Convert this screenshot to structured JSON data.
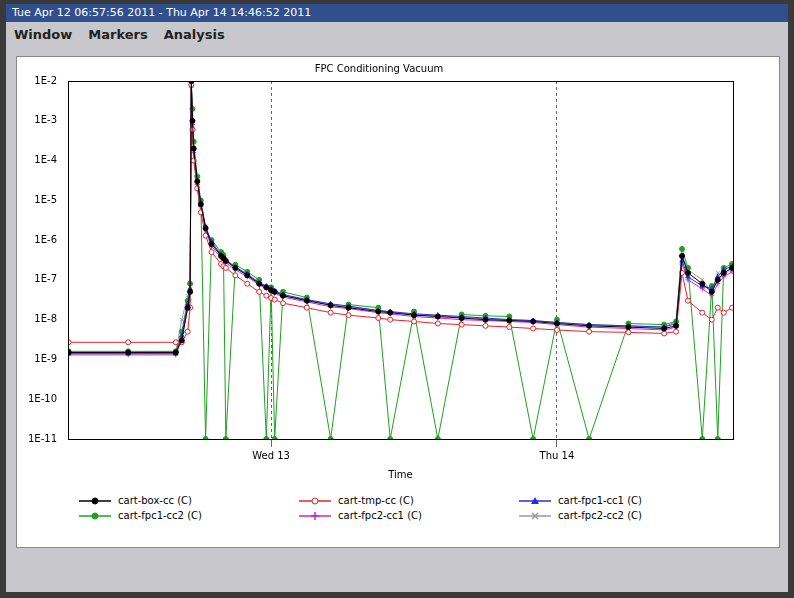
{
  "window_title": "Tue Apr 12 06:57:56 2011 - Thu Apr 14 14:46:52 2011",
  "menu": [
    "Window",
    "Markers",
    "Analysis"
  ],
  "chart_data": {
    "type": "line",
    "title": "FPC Conditioning Vacuum",
    "x_label": "Time",
    "x": [
      -17,
      -12,
      -8,
      -7.5,
      -7,
      -6.8,
      -6.7,
      -6.6,
      -6.5,
      -6.2,
      -5.9,
      -5.5,
      -5,
      -4.2,
      -4,
      -3.8,
      -3,
      -2,
      -1,
      -0.4,
      0,
      0.3,
      1,
      3,
      5,
      6.5,
      9,
      10,
      12,
      14,
      16,
      18,
      20,
      22,
      24,
      26.7,
      30,
      33,
      34,
      34.5,
      35,
      36.2,
      37,
      37.5,
      38,
      38.7
    ],
    "xlim": [
      -17.05,
      38.78
    ],
    "xticks": [
      {
        "value": 0,
        "label": "Wed 13"
      },
      {
        "value": 24,
        "label": "Thu 14"
      }
    ],
    "ylim": [
      1e-11,
      0.01
    ],
    "yticks": [
      {
        "value": 1e-11,
        "label": "1E-11"
      },
      {
        "value": 1e-10,
        "label": "1E-10"
      },
      {
        "value": 1e-09,
        "label": "1E-9"
      },
      {
        "value": 1e-08,
        "label": "1E-8"
      },
      {
        "value": 1e-07,
        "label": "1E-7"
      },
      {
        "value": 1e-06,
        "label": "1E-6"
      },
      {
        "value": 1e-05,
        "label": "1E-5"
      },
      {
        "value": 0.0001,
        "label": "1E-4"
      },
      {
        "value": 0.001,
        "label": "1E-3"
      },
      {
        "value": 0.01,
        "label": "1E-2"
      }
    ],
    "log": "y",
    "grid": "x",
    "legend": "bottom",
    "series": [
      {
        "name": "cart-box-cc (C)",
        "color": "#000000",
        "marker": "circle",
        "values": [
          1.5e-09,
          1.5e-09,
          1.5e-09,
          3e-09,
          2e-08,
          5e-08,
          0.01,
          0.001,
          0.0002,
          3e-05,
          8e-06,
          2e-06,
          8e-07,
          4e-07,
          3.5e-07,
          3e-07,
          2e-07,
          1.3e-07,
          8e-08,
          6.5e-08,
          5.5e-08,
          5e-08,
          4e-08,
          3e-08,
          2.3e-08,
          2e-08,
          1.6e-08,
          1.5e-08,
          1.3e-08,
          1.2e-08,
          1.1e-08,
          1e-08,
          9.5e-09,
          9e-09,
          8e-09,
          7e-09,
          6.5e-09,
          6e-09,
          7e-09,
          4e-07,
          1.5e-07,
          8e-08,
          5e-08,
          1e-07,
          1.5e-07,
          2e-07
        ]
      },
      {
        "name": "cart-tmp-cc (C)",
        "color": "#e8202a",
        "marker": "open_circle",
        "values": [
          2.7e-09,
          2.7e-09,
          2.7e-09,
          2.7e-09,
          5e-09,
          2e-08,
          0.008,
          0.0006,
          0.0001,
          2e-05,
          5e-06,
          1.3e-06,
          5e-07,
          2.5e-07,
          2.2e-07,
          2e-07,
          1.3e-07,
          8e-08,
          5e-08,
          4e-08,
          3.5e-08,
          3.2e-08,
          2.6e-08,
          2e-08,
          1.5e-08,
          1.3e-08,
          1.1e-08,
          1e-08,
          9e-09,
          8e-09,
          7.5e-09,
          7e-09,
          6.5e-09,
          6e-09,
          5.5e-09,
          5e-09,
          4.8e-09,
          4.5e-09,
          5e-09,
          1.5e-07,
          3e-08,
          1.5e-08,
          1e-08,
          2e-08,
          1.5e-08,
          2e-08
        ]
      },
      {
        "name": "cart-fpc1-cc1 (C)",
        "color": "#2030e0",
        "marker": "triangle",
        "values": [
          1.4e-09,
          1.4e-09,
          1.4e-09,
          4e-09,
          2.5e-08,
          6e-08,
          0.009,
          0.001,
          0.0002,
          3e-05,
          9e-06,
          2.2e-06,
          9e-07,
          4.3e-07,
          3.8e-07,
          3.2e-07,
          2.1e-07,
          1.4e-07,
          8.5e-08,
          7e-08,
          6e-08,
          5.4e-08,
          4.3e-08,
          3.2e-08,
          2.5e-08,
          2.2e-08,
          1.7e-08,
          1.6e-08,
          1.4e-08,
          1.3e-08,
          1.2e-08,
          1.1e-08,
          1e-08,
          9.5e-09,
          8.5e-09,
          7.5e-09,
          7e-09,
          6.5e-09,
          8e-09,
          3e-07,
          1.2e-07,
          7e-08,
          6e-08,
          1.2e-07,
          1.8e-07,
          2.2e-07
        ]
      },
      {
        "name": "cart-fpc1-cc2 (C)",
        "color": "#20a020",
        "marker": "circle",
        "values": [
          1.6e-09,
          1.6e-09,
          1.6e-09,
          5e-09,
          3e-08,
          8e-08,
          0.01,
          0.002,
          0.0003,
          4e-05,
          1e-05,
          1e-11,
          1e-06,
          5e-07,
          4.2e-07,
          1e-11,
          2.4e-07,
          1.6e-07,
          1e-07,
          1e-11,
          6.5e-08,
          1e-11,
          5e-08,
          3.6e-08,
          1e-11,
          2.4e-08,
          2e-08,
          1e-11,
          1.6e-08,
          1e-11,
          1.35e-08,
          1.25e-08,
          1.2e-08,
          1e-11,
          1e-08,
          1e-11,
          8e-09,
          7.5e-09,
          9e-09,
          6e-07,
          2e-07,
          1e-11,
          7e-08,
          1e-11,
          2e-07,
          2.5e-07
        ]
      },
      {
        "name": "cart-fpc2-cc1 (C)",
        "color": "#d020d0",
        "marker": "cross",
        "values": [
          1.3e-09,
          1.3e-09,
          1.3e-09,
          3.5e-09,
          2e-08,
          5e-08,
          0.007,
          0.0008,
          0.00016,
          2.5e-05,
          7e-06,
          1.8e-06,
          7e-07,
          3.6e-07,
          3.2e-07,
          2.7e-07,
          1.8e-07,
          1.2e-07,
          7.5e-08,
          6e-08,
          5e-08,
          4.6e-08,
          3.7e-08,
          2.8e-08,
          2.1e-08,
          1.9e-08,
          1.5e-08,
          1.4e-08,
          1.2e-08,
          1.1e-08,
          1e-08,
          9.5e-09,
          9e-09,
          8.5e-09,
          7.5e-09,
          6.5e-09,
          6e-09,
          5.5e-09,
          6.5e-09,
          2.5e-07,
          1e-07,
          6e-08,
          4e-08,
          8e-08,
          1.2e-07,
          1.6e-07
        ]
      },
      {
        "name": "cart-fpc2-cc2 (C)",
        "color": "#9a9a9a",
        "marker": "x",
        "values": [
          1.5e-09,
          1.5e-09,
          1.6e-09,
          1e-08,
          4e-08,
          3e-08,
          0.008,
          0.0009,
          0.0002,
          3.2e-05,
          8.5e-06,
          2.1e-06,
          8.5e-07,
          4.2e-07,
          3.7e-07,
          3.1e-07,
          2.1e-07,
          1.35e-07,
          8.5e-08,
          6.8e-08,
          5.8e-08,
          5.2e-08,
          4.2e-08,
          3.1e-08,
          2.4e-08,
          2.1e-08,
          1.7e-08,
          1.55e-08,
          1.35e-08,
          1.25e-08,
          1.15e-08,
          1.05e-08,
          1e-08,
          9.5e-09,
          8.5e-09,
          7.5e-09,
          7e-09,
          6.5e-09,
          9e-09,
          4e-07,
          1.8e-07,
          1e-07,
          5e-08,
          1.5e-07,
          1.3e-07,
          2e-07
        ]
      }
    ]
  }
}
